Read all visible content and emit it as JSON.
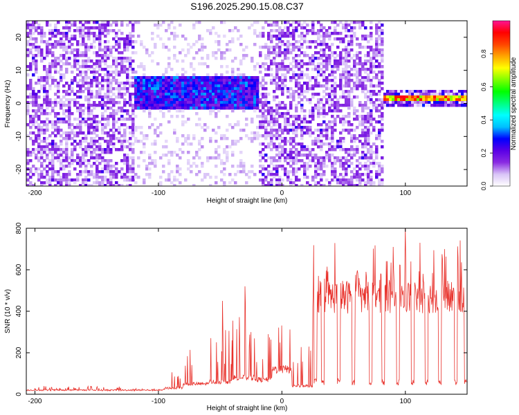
{
  "title": "S196.2025.290.15.08.C37",
  "chart_data": [
    {
      "type": "heatmap",
      "name": "spectrogram",
      "xlabel": "Height of straight line (km)",
      "ylabel": "Frequency (Hz)",
      "xlim": [
        -207,
        150
      ],
      "ylim": [
        -25,
        25
      ],
      "xticks": [
        -200,
        -100,
        0,
        100
      ],
      "yticks": [
        -20,
        -10,
        0,
        10,
        20
      ],
      "colorbar": {
        "label": "Normalized spectral amplitude",
        "range": [
          0,
          1
        ],
        "ticks": [
          0.0,
          0.2,
          0.4,
          0.6,
          0.8
        ],
        "colormap": [
          "#ffffff",
          "#d9c4f7",
          "#8a2be2",
          "#5a00e6",
          "#0000ff",
          "#00bfff",
          "#00ffff",
          "#00ff7f",
          "#00ff00",
          "#7fff00",
          "#ffff00",
          "#ffa500",
          "#ff4500",
          "#ff0000",
          "#ff1493"
        ]
      },
      "regions": [
        {
          "x": [
            -207,
            -120
          ],
          "pattern": "broadband noise",
          "amplitude": [
            0.05,
            0.2
          ]
        },
        {
          "x": [
            -120,
            -20
          ],
          "pattern": "band near 0-8 Hz",
          "amplitude": [
            0.15,
            0.35
          ]
        },
        {
          "x": [
            -20,
            80
          ],
          "pattern": "broadband noise",
          "amplitude": [
            0.05,
            0.2
          ]
        },
        {
          "x": [
            80,
            150
          ],
          "pattern": "narrow line at ~2 Hz",
          "frequency": 2,
          "amplitude": [
            0.6,
            0.95
          ]
        }
      ]
    },
    {
      "type": "line",
      "name": "snr",
      "xlabel": "Height of straight line (km)",
      "ylabel": "SNR (10 * v/v)",
      "xlim": [
        -207,
        150
      ],
      "ylim": [
        0,
        800
      ],
      "xticks": [
        -200,
        -100,
        0,
        100
      ],
      "yticks": [
        0,
        200,
        400,
        600,
        800
      ],
      "series": [
        {
          "name": "SNR",
          "color": "#e8302a",
          "segments": [
            {
              "x_from": -207,
              "x_to": -95,
              "baseline": 20,
              "spike": 15,
              "spike_rate": 0.1
            },
            {
              "x_from": -95,
              "x_to": -80,
              "baseline": 30,
              "spike": 60,
              "spike_rate": 0.12
            },
            {
              "x_from": -80,
              "x_to": -60,
              "baseline": 50,
              "spike": 120,
              "spike_rate": 0.12
            },
            {
              "x_from": -60,
              "x_to": -40,
              "baseline": 60,
              "spike": 200,
              "spike_rate": 0.12
            },
            {
              "x_from": -40,
              "x_to": -22,
              "baseline": 80,
              "spike": 280,
              "spike_rate": 0.12
            },
            {
              "x_from": -22,
              "x_to": -8,
              "baseline": 70,
              "spike": 180,
              "spike_rate": 0.12
            },
            {
              "x_from": -8,
              "x_to": 8,
              "baseline": 120,
              "spike": 200,
              "spike_rate": 0.12
            },
            {
              "x_from": 8,
              "x_to": 25,
              "baseline": 40,
              "spike": 150,
              "spike_rate": 0.12
            },
            {
              "x_from": 25,
              "x_to": 150,
              "baseline": 470,
              "spike": 170,
              "spike_rate": 0.14
            }
          ],
          "dropouts": [
            {
              "x": 27,
              "value": 60
            },
            {
              "x": 33,
              "value": 55
            },
            {
              "x": 46,
              "value": 60
            },
            {
              "x": 58,
              "value": 55
            },
            {
              "x": 72,
              "value": 55
            },
            {
              "x": 82,
              "value": 55
            },
            {
              "x": 94,
              "value": 55
            },
            {
              "x": 106,
              "value": 55
            },
            {
              "x": 117,
              "value": 55
            },
            {
              "x": 128,
              "value": 55
            },
            {
              "x": 141,
              "value": 55
            },
            {
              "x": 149,
              "value": 55
            }
          ],
          "annotated_peaks": [
            {
              "x": -30,
              "value": 520
            },
            {
              "x": -48,
              "value": 450
            },
            {
              "x": 100,
              "value": 800
            },
            {
              "x": 90,
              "value": 710
            },
            {
              "x": 112,
              "value": 730
            }
          ]
        }
      ]
    }
  ]
}
